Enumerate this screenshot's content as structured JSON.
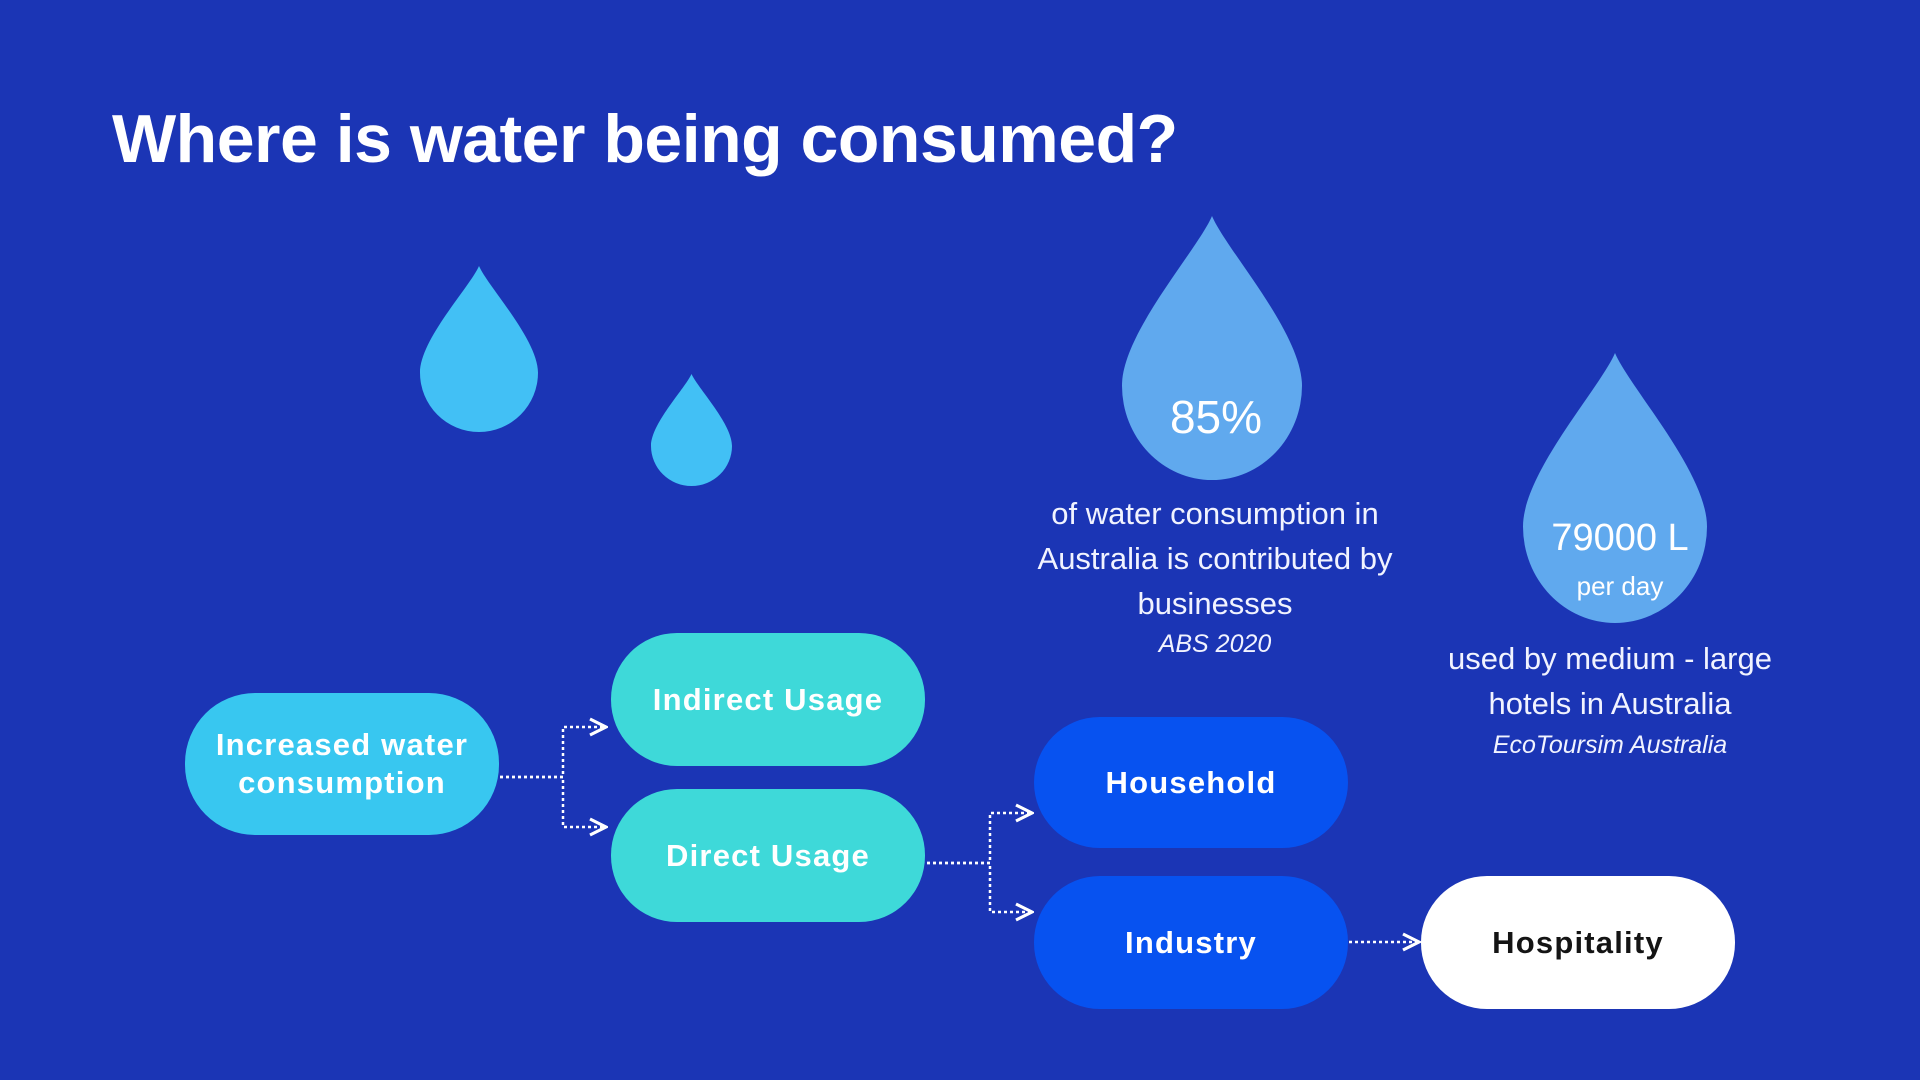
{
  "title": "Where is water being consumed?",
  "colors": {
    "background": "#1b35b5",
    "drop_light": "#42c0f5",
    "drop_stat": "#60a9ee",
    "node_light": "#38c7f0",
    "node_teal": "#3ed9d9",
    "node_blue": "#0752f0",
    "node_white": "#ffffff"
  },
  "stats": [
    {
      "value": "85%",
      "caption": "of  water consumption in Australia  is contributed by businesses",
      "source": "ABS 2020"
    },
    {
      "value": "79000 L",
      "unit": "per day",
      "caption": "used by medium - large hotels in Australia",
      "source": "EcoToursim Australia"
    }
  ],
  "flow": {
    "nodes": [
      {
        "id": "increased",
        "label": "Increased water consumption"
      },
      {
        "id": "indirect",
        "label": "Indirect Usage"
      },
      {
        "id": "direct",
        "label": "Direct Usage"
      },
      {
        "id": "household",
        "label": "Household"
      },
      {
        "id": "industry",
        "label": "Industry"
      },
      {
        "id": "hospitality",
        "label": "Hospitality"
      }
    ],
    "edges": [
      {
        "from": "increased",
        "to": "indirect"
      },
      {
        "from": "increased",
        "to": "direct"
      },
      {
        "from": "direct",
        "to": "household"
      },
      {
        "from": "direct",
        "to": "industry"
      },
      {
        "from": "industry",
        "to": "hospitality"
      }
    ]
  }
}
